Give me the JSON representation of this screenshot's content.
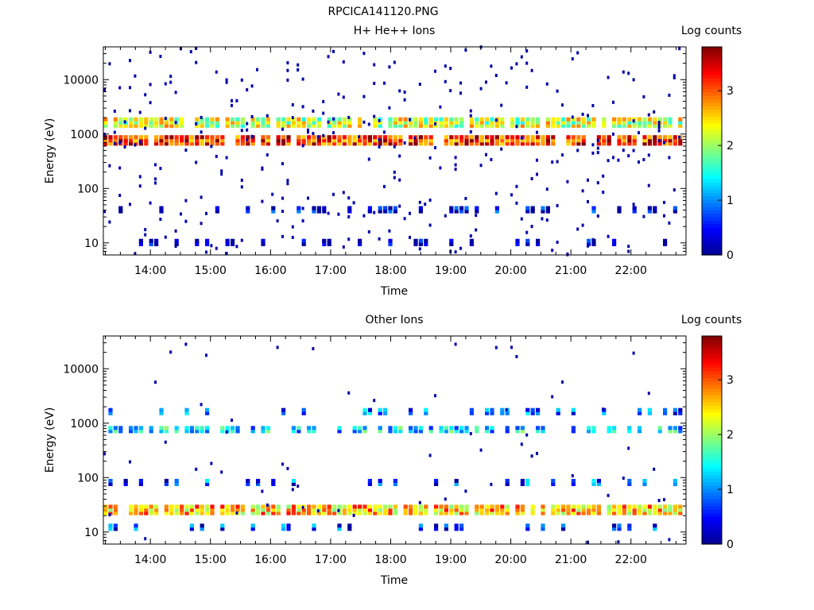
{
  "figure_title": "RPCICA141120.PNG",
  "colormap": [
    "#00008f",
    "#0000ff",
    "#0080ff",
    "#00ffff",
    "#80ff80",
    "#ffff00",
    "#ff8000",
    "#ff0000",
    "#800000"
  ],
  "chart_data": [
    {
      "type": "heatmap",
      "title": "H+ He++ Ions",
      "xlabel": "Time",
      "ylabel": "Energy (eV)",
      "x_ticks": [
        "14:00",
        "15:00",
        "16:00",
        "17:00",
        "18:00",
        "19:00",
        "20:00",
        "21:00",
        "22:00"
      ],
      "y_ticks": [
        "10",
        "100",
        "1000",
        "10000"
      ],
      "y_scale": "log",
      "ylim": [
        6,
        40000
      ],
      "xlim": [
        "13:13",
        "22:55"
      ],
      "colorbar": {
        "label": "Log counts",
        "ticks": [
          "0",
          "1",
          "2",
          "3"
        ],
        "range": [
          0,
          3.8
        ]
      },
      "bands": [
        {
          "energy_eV": 1600,
          "log_counts": 2.2
        },
        {
          "energy_eV": 750,
          "log_counts": 3.2
        },
        {
          "energy_eV": 40,
          "log_counts": 0.3
        },
        {
          "energy_eV": 10,
          "log_counts": 0.2
        }
      ]
    },
    {
      "type": "heatmap",
      "title": "Other Ions",
      "xlabel": "Time",
      "ylabel": "Energy (eV)",
      "x_ticks": [
        "14:00",
        "15:00",
        "16:00",
        "17:00",
        "18:00",
        "19:00",
        "20:00",
        "21:00",
        "22:00"
      ],
      "y_ticks": [
        "10",
        "100",
        "1000",
        "10000"
      ],
      "y_scale": "log",
      "ylim": [
        6,
        40000
      ],
      "xlim": [
        "13:13",
        "22:55"
      ],
      "colorbar": {
        "label": "Log counts",
        "ticks": [
          "0",
          "1",
          "2",
          "3"
        ],
        "range": [
          0,
          3.8
        ]
      },
      "bands": [
        {
          "energy_eV": 1600,
          "log_counts": 0.8
        },
        {
          "energy_eV": 750,
          "log_counts": 1.3
        },
        {
          "energy_eV": 80,
          "log_counts": 0.7
        },
        {
          "energy_eV": 25,
          "log_counts": 2.6
        },
        {
          "energy_eV": 12,
          "log_counts": 0.6
        }
      ]
    }
  ]
}
